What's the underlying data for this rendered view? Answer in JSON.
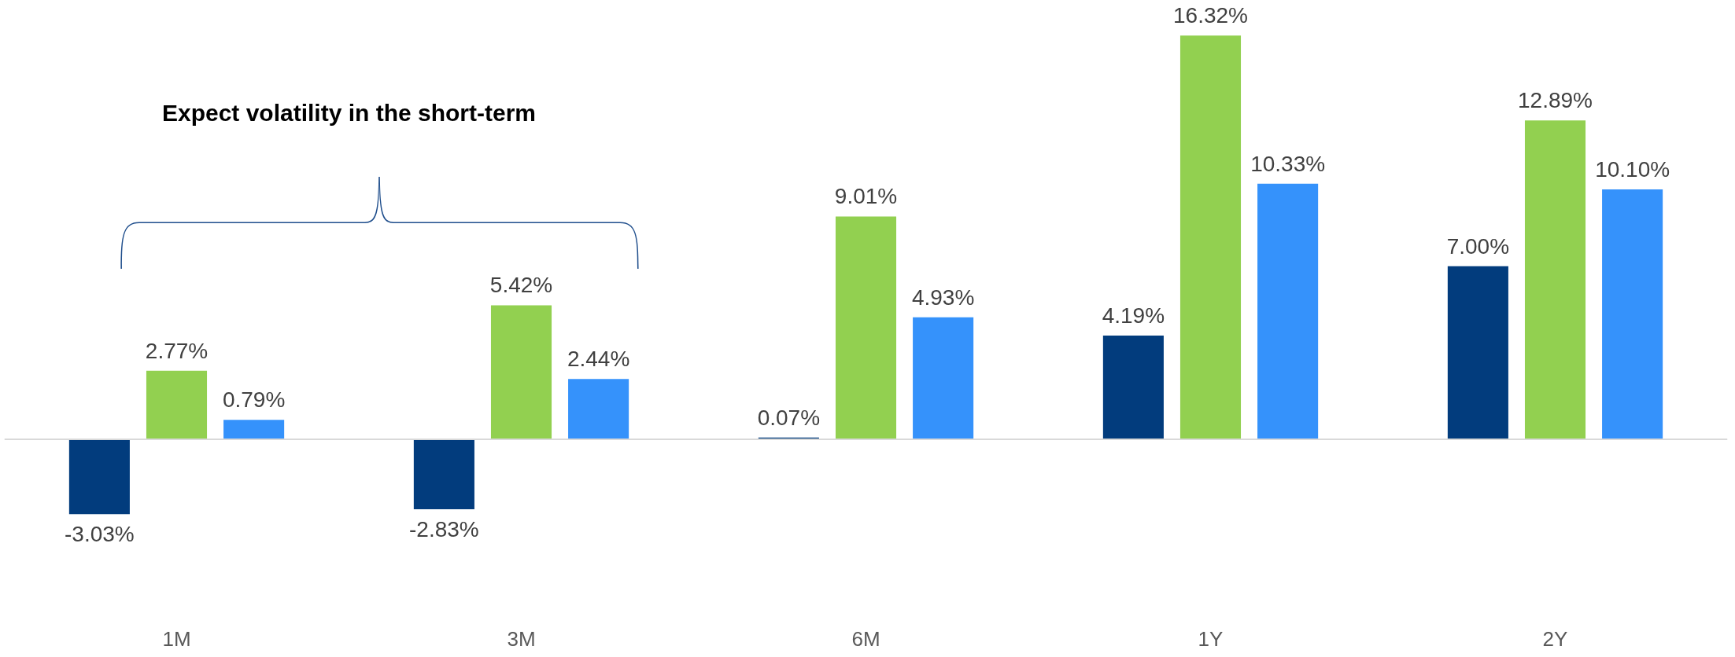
{
  "chart_data": {
    "type": "bar",
    "categories": [
      "1M",
      "3M",
      "6M",
      "1Y",
      "2Y"
    ],
    "series": [
      {
        "color": "#023c7d",
        "values": [
          -3.03,
          -2.83,
          0.07,
          4.19,
          7.0
        ],
        "value_labels": [
          "-3.03%",
          "-2.83%",
          "0.07%",
          "4.19%",
          "7.00%"
        ]
      },
      {
        "color": "#92d050",
        "values": [
          2.77,
          5.42,
          9.01,
          16.32,
          12.89
        ],
        "value_labels": [
          "2.77%",
          "5.42%",
          "9.01%",
          "16.32%",
          "12.89%"
        ]
      },
      {
        "color": "#3592fb",
        "values": [
          0.79,
          2.44,
          4.93,
          10.33,
          10.1
        ],
        "value_labels": [
          "0.79%",
          "2.44%",
          "4.93%",
          "10.33%",
          "10.10%"
        ]
      }
    ],
    "tick_labels": "x",
    "grid": false,
    "annotations": [
      "Expect volatility in the short-term"
    ]
  }
}
